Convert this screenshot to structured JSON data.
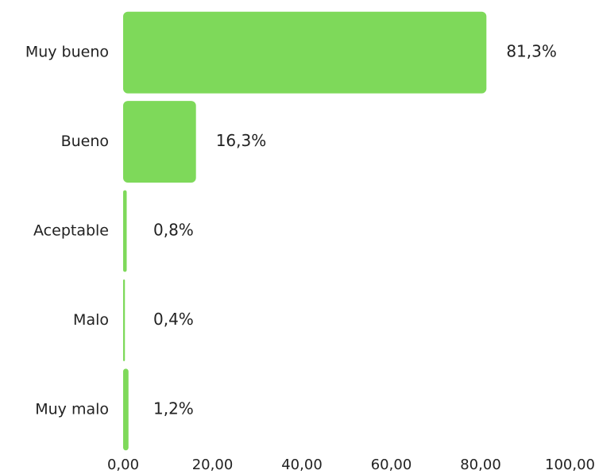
{
  "chart_data": {
    "type": "bar",
    "orientation": "horizontal",
    "categories": [
      "Muy bueno",
      "Bueno",
      "Aceptable",
      "Malo",
      "Muy malo"
    ],
    "values": [
      81.3,
      16.3,
      0.8,
      0.4,
      1.2
    ],
    "value_labels": [
      "81,3%",
      "16,3%",
      "0,8%",
      "0,4%",
      "1,2%"
    ],
    "color": "#7ed95a",
    "xlim": [
      0,
      100
    ],
    "xticks": [
      {
        "value": 0,
        "label": "0,00"
      },
      {
        "value": 20,
        "label": "20,00"
      },
      {
        "value": 40,
        "label": "40,00"
      },
      {
        "value": 60,
        "label": "60,00"
      },
      {
        "value": 80,
        "label": "80,00"
      },
      {
        "value": 100,
        "label": "100,00"
      }
    ],
    "grid": false
  }
}
